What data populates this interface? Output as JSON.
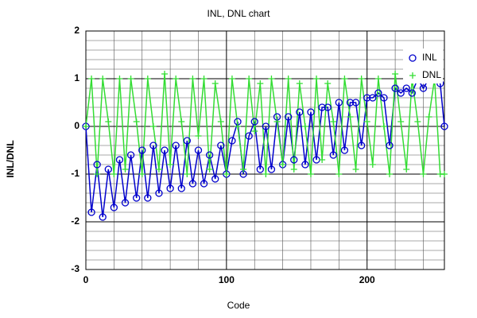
{
  "chart_data": {
    "type": "line",
    "title": "INL, DNL chart",
    "x_label": "Code",
    "y_label": "INL/DNL",
    "x": [
      0,
      4,
      8,
      12,
      16,
      20,
      24,
      28,
      32,
      36,
      40,
      44,
      48,
      52,
      56,
      60,
      64,
      68,
      72,
      76,
      80,
      84,
      88,
      92,
      96,
      100,
      104,
      108,
      112,
      116,
      120,
      124,
      128,
      132,
      136,
      140,
      144,
      148,
      152,
      156,
      160,
      164,
      168,
      172,
      176,
      180,
      184,
      188,
      192,
      196,
      200,
      204,
      208,
      212,
      216,
      220,
      224,
      228,
      232,
      236,
      240,
      244,
      248,
      252,
      255
    ],
    "series": [
      {
        "name": "INL",
        "color": "#0000cc",
        "marker": "circle",
        "values": [
          0,
          -1.8,
          -0.8,
          -1.9,
          -0.9,
          -1.7,
          -0.7,
          -1.6,
          -0.6,
          -1.5,
          -0.5,
          -1.5,
          -0.4,
          -1.4,
          -0.5,
          -1.3,
          -0.4,
          -1.3,
          -0.3,
          -1.2,
          -0.5,
          -1.2,
          -0.6,
          -1.1,
          -0.4,
          -1.0,
          -0.3,
          0.1,
          -1.0,
          -0.2,
          0.1,
          -0.9,
          0.0,
          -0.9,
          0.2,
          -0.8,
          0.2,
          -0.7,
          0.3,
          -0.8,
          0.3,
          -0.7,
          0.4,
          0.4,
          -0.6,
          0.5,
          -0.5,
          0.5,
          0.5,
          -0.4,
          0.6,
          0.6,
          0.7,
          0.6,
          -0.4,
          0.8,
          0.7,
          0.8,
          0.7,
          1.0,
          0.8,
          1.0,
          1.0,
          0.9,
          0.0
        ]
      },
      {
        "name": "DNL",
        "color": "#33dd33",
        "marker": "plus",
        "values": [
          0,
          1.0,
          -1.0,
          1.0,
          0.1,
          -1.0,
          1.0,
          -0.9,
          1.0,
          0.1,
          -1.0,
          1.0,
          0.0,
          -0.9,
          1.1,
          -0.8,
          1.0,
          0.1,
          -1.0,
          1.0,
          -0.2,
          1.0,
          -0.9,
          0.9,
          0.1,
          -1.0,
          1.0,
          0.0,
          -0.9,
          1.0,
          -0.1,
          0.9,
          -1.0,
          1.0,
          0.1,
          -0.8,
          1.0,
          -0.9,
          0.9,
          0.0,
          -1.0,
          1.0,
          -0.7,
          0.9,
          0.1,
          -1.0,
          1.0,
          0.2,
          -0.9,
          1.0,
          0.1,
          -0.8,
          1.0,
          0.0,
          -1.0,
          1.1,
          0.1,
          -0.9,
          1.0,
          0.1,
          -1.0,
          0.2,
          1.0,
          -1.0,
          -1.0
        ]
      }
    ],
    "xlim": [
      0,
      255
    ],
    "ylim": [
      -3,
      2
    ],
    "xticks": [
      0,
      100,
      200
    ],
    "yticks": [
      -3,
      -2,
      -1,
      0,
      1,
      2
    ],
    "xminor": [
      20,
      40,
      60,
      80,
      120,
      140,
      160,
      180,
      220,
      240
    ],
    "yminor": [
      -2.8,
      -2.6,
      -2.4,
      -2.2,
      -1.8,
      -1.6,
      -1.4,
      -1.2,
      -0.8,
      -0.6,
      -0.4,
      -0.2,
      0.2,
      0.4,
      0.6,
      0.8,
      1.2,
      1.4,
      1.6,
      1.8
    ],
    "grid": true,
    "legend": "upper right"
  }
}
